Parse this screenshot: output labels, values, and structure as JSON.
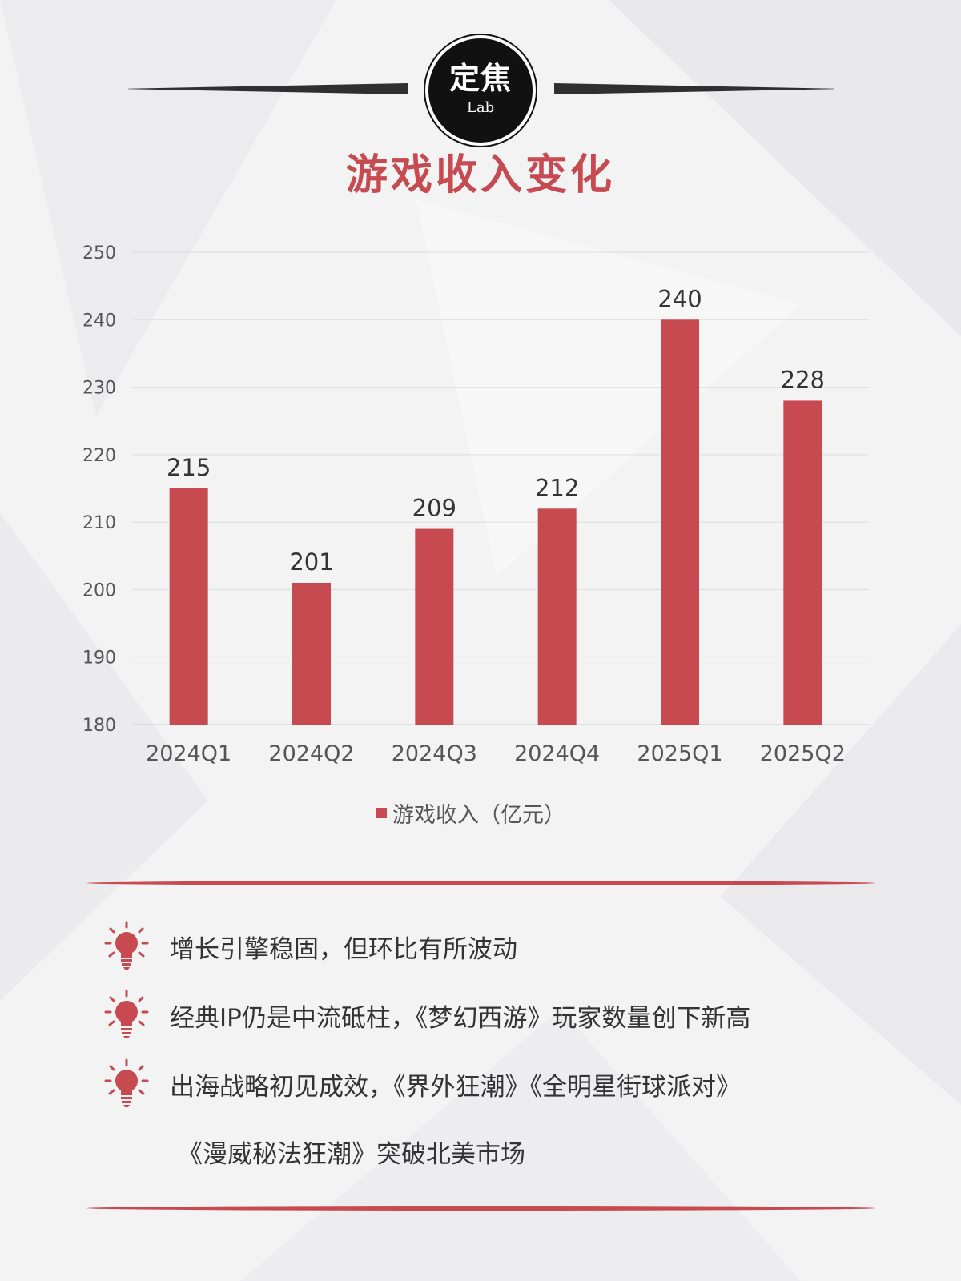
{
  "colors": {
    "accent": "#c74a50",
    "bar": "#c74a50",
    "text": "#333333",
    "logo_bg": "#111111"
  },
  "logo": {
    "main": "定焦",
    "sub": "Lab"
  },
  "title": "游戏收入变化",
  "chart_data": {
    "type": "bar",
    "title": "游戏收入变化",
    "categories": [
      "2024Q1",
      "2024Q2",
      "2024Q3",
      "2024Q4",
      "2025Q1",
      "2025Q2"
    ],
    "series": [
      {
        "name": "游戏收入（亿元）",
        "values": [
          215,
          201,
          209,
          212,
          240,
          228
        ]
      }
    ],
    "ylim": [
      180,
      250
    ],
    "yticks": [
      180,
      190,
      200,
      210,
      220,
      230,
      240,
      250
    ],
    "grid": true,
    "legend": "bottom",
    "data_labels": true
  },
  "points": [
    {
      "icon": "lightbulb-icon",
      "lines": [
        "增长引擎稳固，但环比有所波动"
      ]
    },
    {
      "icon": "lightbulb-icon",
      "lines": [
        "经典IP仍是中流砥柱，《梦幻西游》玩家数量创下新高"
      ]
    },
    {
      "icon": "lightbulb-icon",
      "lines": [
        "出海战略初见成效，《界外狂潮》《全明星街球派对》",
        "《漫威秘法狂潮》突破北美市场"
      ]
    }
  ]
}
